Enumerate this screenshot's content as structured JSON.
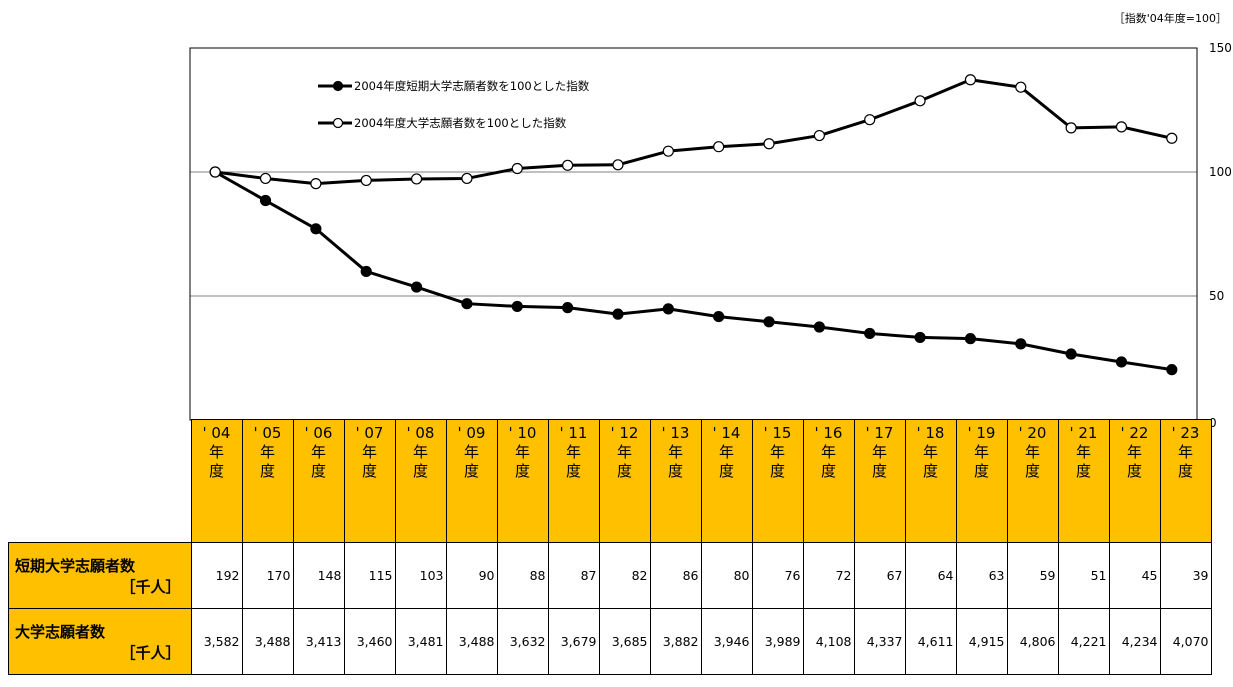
{
  "index_note": "［指数'04年度=100］",
  "chart_data": {
    "type": "line",
    "categories": [
      "'04年度",
      "'05年度",
      "'06年度",
      "'07年度",
      "'08年度",
      "'09年度",
      "'10年度",
      "'11年度",
      "'12年度",
      "'13年度",
      "'14年度",
      "'15年度",
      "'16年度",
      "'17年度",
      "'18年度",
      "'19年度",
      "'20年度",
      "'21年度",
      "'22年度",
      "'23年度"
    ],
    "ylim": [
      0,
      150
    ],
    "yticks": [
      0,
      50,
      100,
      150
    ],
    "y_axis_side": "right",
    "grid": true,
    "legend_position": "top-left",
    "series": [
      {
        "name": "2004年度短期大学志願者数を100とした指数",
        "marker": "filled-circle",
        "color": "#000000",
        "values": [
          100,
          88.5,
          77.1,
          59.9,
          53.6,
          46.9,
          45.8,
          45.3,
          42.7,
          44.8,
          41.7,
          39.6,
          37.5,
          34.9,
          33.3,
          32.8,
          30.7,
          26.6,
          23.4,
          20.3
        ]
      },
      {
        "name": "2004年度大学志願者数を100とした指数",
        "marker": "open-circle",
        "color": "#000000",
        "values": [
          100,
          97.4,
          95.3,
          96.6,
          97.2,
          97.4,
          101.4,
          102.7,
          102.9,
          108.4,
          110.2,
          111.4,
          114.7,
          121.1,
          128.7,
          137.2,
          134.2,
          117.8,
          118.2,
          113.6
        ]
      }
    ]
  },
  "table": {
    "years": [
      {
        "line1": "' 04",
        "line2": "年",
        "line3": "度"
      },
      {
        "line1": "' 05",
        "line2": "年",
        "line3": "度"
      },
      {
        "line1": "' 06",
        "line2": "年",
        "line3": "度"
      },
      {
        "line1": "' 07",
        "line2": "年",
        "line3": "度"
      },
      {
        "line1": "' 08",
        "line2": "年",
        "line3": "度"
      },
      {
        "line1": "' 09",
        "line2": "年",
        "line3": "度"
      },
      {
        "line1": "' 10",
        "line2": "年",
        "line3": "度"
      },
      {
        "line1": "' 11",
        "line2": "年",
        "line3": "度"
      },
      {
        "line1": "' 12",
        "line2": "年",
        "line3": "度"
      },
      {
        "line1": "' 13",
        "line2": "年",
        "line3": "度"
      },
      {
        "line1": "' 14",
        "line2": "年",
        "line3": "度"
      },
      {
        "line1": "' 15",
        "line2": "年",
        "line3": "度"
      },
      {
        "line1": "' 16",
        "line2": "年",
        "line3": "度"
      },
      {
        "line1": "' 17",
        "line2": "年",
        "line3": "度"
      },
      {
        "line1": "' 18",
        "line2": "年",
        "line3": "度"
      },
      {
        "line1": "' 19",
        "line2": "年",
        "line3": "度"
      },
      {
        "line1": "' 20",
        "line2": "年",
        "line3": "度"
      },
      {
        "line1": "' 21",
        "line2": "年",
        "line3": "度"
      },
      {
        "line1": "' 22",
        "line2": "年",
        "line3": "度"
      },
      {
        "line1": "' 23",
        "line2": "年",
        "line3": "度"
      }
    ],
    "rows": [
      {
        "label": "短期大学志願者数",
        "unit": "［千人］",
        "values": [
          "192",
          "170",
          "148",
          "115",
          "103",
          "90",
          "88",
          "87",
          "82",
          "86",
          "80",
          "76",
          "72",
          "67",
          "64",
          "63",
          "59",
          "51",
          "45",
          "39"
        ]
      },
      {
        "label": "大学志願者数",
        "unit": "［千人］",
        "values": [
          "3,582",
          "3,488",
          "3,413",
          "3,460",
          "3,481",
          "3,488",
          "3,632",
          "3,679",
          "3,685",
          "3,882",
          "3,946",
          "3,989",
          "4,108",
          "4,337",
          "4,611",
          "4,915",
          "4,806",
          "4,221",
          "4,234",
          "4,070"
        ]
      }
    ]
  }
}
